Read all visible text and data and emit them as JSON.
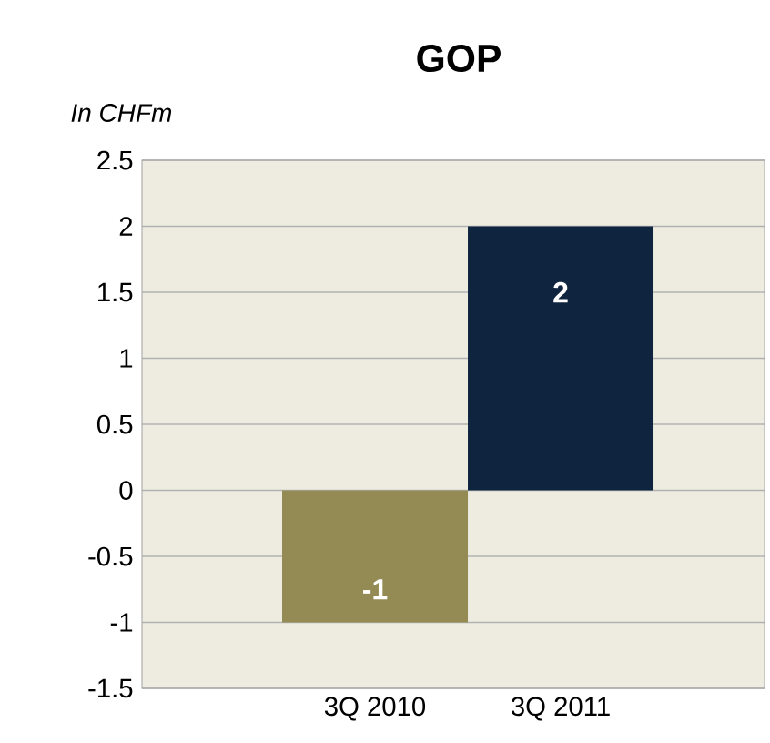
{
  "chart_data": {
    "type": "bar",
    "title": "GOP",
    "ylabel": "In CHFm",
    "categories": [
      "3Q 2010",
      "3Q 2011"
    ],
    "values": [
      -1,
      2
    ],
    "colors": [
      "#948a54",
      "#0f243e"
    ],
    "ylim": [
      -1.5,
      2.5
    ],
    "yticks": [
      -1.5,
      -1,
      -0.5,
      0,
      0.5,
      1,
      1.5,
      2,
      2.5
    ],
    "grid": "y",
    "data_labels": true
  }
}
